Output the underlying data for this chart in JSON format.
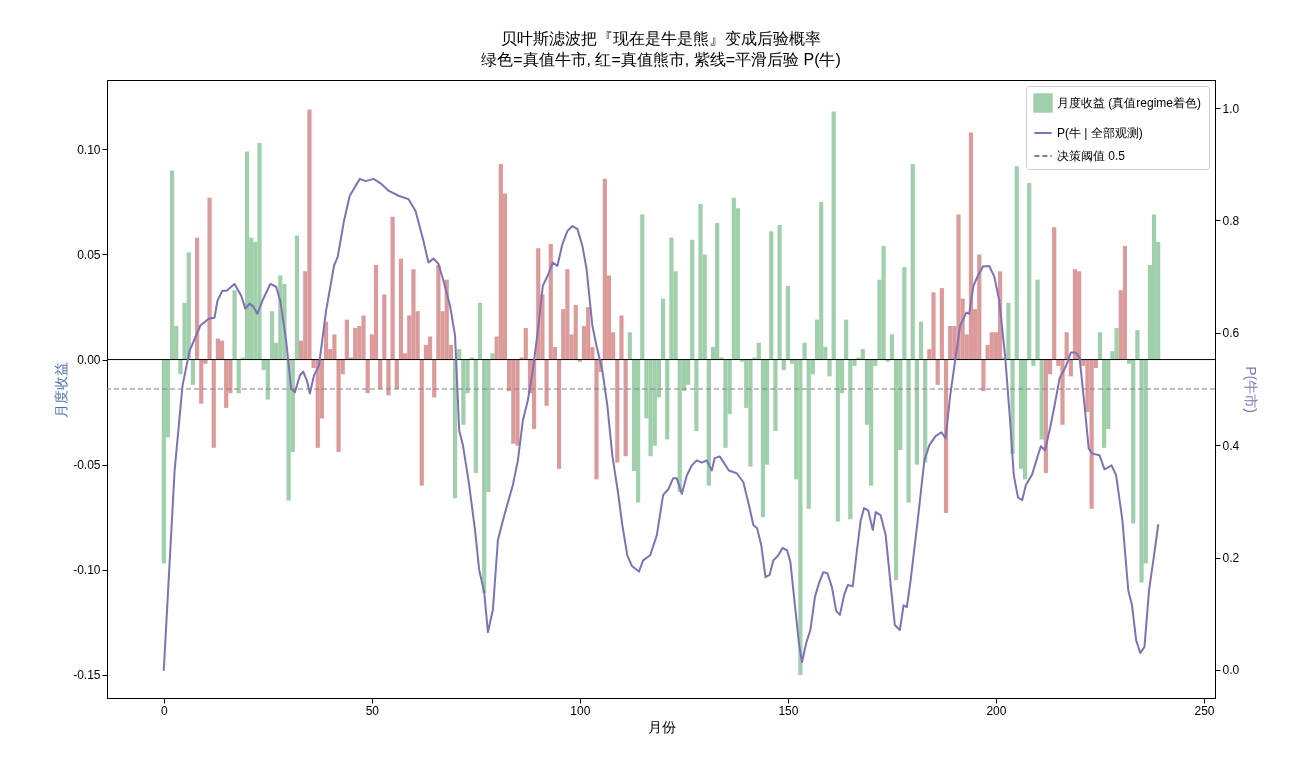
{
  "chart_data": {
    "type": "bar",
    "title": "贝叶斯滤波把『现在是牛是熊』变成后验概率",
    "subtitle": "绿色=真值牛市, 红=真值熊市, 紫线=平滑后验 P(牛)",
    "xlabel": "月份",
    "ylabel": "月度收益",
    "y2label": "P(牛市)",
    "xlim": [
      -12.45,
      251.45
    ],
    "xticks": [
      0,
      50,
      100,
      150,
      200,
      250
    ],
    "ylim": [
      -0.161,
      0.133
    ],
    "yticks": [
      {
        "value": -0.15,
        "label": "-0.15"
      },
      {
        "value": -0.1,
        "label": "-0.10"
      },
      {
        "value": -0.05,
        "label": "-0.05"
      },
      {
        "value": 0,
        "label": "0.00"
      },
      {
        "value": 0.05,
        "label": "0.05"
      },
      {
        "value": 0.1,
        "label": "0.10"
      }
    ],
    "y2lim": [
      -0.05,
      1.05
    ],
    "y2ticks": [
      {
        "value": 0,
        "label": "0.0"
      },
      {
        "value": 0.2,
        "label": "0.2"
      },
      {
        "value": 0.4,
        "label": "0.4"
      },
      {
        "value": 0.6,
        "label": "0.6"
      },
      {
        "value": 0.8,
        "label": "0.8"
      },
      {
        "value": 1,
        "label": "1.0"
      }
    ],
    "legend": "top right",
    "ref_lines": [
      {
        "axis": "y",
        "value": 0,
        "color": "#000000",
        "line_style": "solid"
      },
      {
        "axis": "y2",
        "value": 0.5,
        "label": "决策阈值 0.5",
        "color": "#808080",
        "line_style": "dashed"
      }
    ],
    "series": [
      {
        "name": "月度收益 (真值regime着色)",
        "color": "#a0cfab",
        "x": [
          0,
          1,
          2,
          3,
          4,
          5,
          6,
          7,
          8,
          9,
          10,
          11,
          12,
          13,
          14,
          15,
          16,
          17,
          18,
          19,
          20,
          21,
          22,
          23,
          24,
          25,
          26,
          27,
          28,
          29,
          30,
          31,
          32,
          33,
          34,
          35,
          36,
          37,
          38,
          39,
          40,
          41,
          42,
          43,
          44,
          45,
          46,
          47,
          48,
          49,
          50,
          51,
          52,
          53,
          54,
          55,
          56,
          57,
          58,
          59,
          60,
          61,
          62,
          63,
          64,
          65,
          66,
          67,
          68,
          69,
          70,
          71,
          72,
          73,
          74,
          75,
          76,
          77,
          78,
          79,
          80,
          81,
          82,
          83,
          84,
          85,
          86,
          87,
          88,
          89,
          90,
          91,
          92,
          93,
          94,
          95,
          96,
          97,
          98,
          99,
          100,
          101,
          102,
          103,
          104,
          105,
          106,
          107,
          108,
          109,
          110,
          111,
          112,
          113,
          114,
          115,
          116,
          117,
          118,
          119,
          120,
          121,
          122,
          123,
          124,
          125,
          126,
          127,
          128,
          129,
          130,
          131,
          132,
          133,
          134,
          135,
          136,
          137,
          138,
          139,
          140,
          141,
          142,
          143,
          144,
          145,
          146,
          147,
          148,
          149,
          150,
          151,
          152,
          153,
          154,
          155,
          156,
          157,
          158,
          159,
          160,
          161,
          162,
          163,
          164,
          165,
          166,
          167,
          168,
          169,
          170,
          171,
          172,
          173,
          174,
          175,
          176,
          177,
          178,
          179,
          180,
          181,
          182,
          183,
          184,
          185,
          186,
          187,
          188,
          189,
          190,
          191,
          192,
          193,
          194,
          195,
          196,
          197,
          198,
          199,
          200,
          201,
          202,
          203,
          204,
          205,
          206,
          207,
          208,
          209,
          210,
          211,
          212,
          213,
          214,
          215,
          216,
          217,
          218,
          219,
          220,
          221,
          222,
          223,
          224,
          225,
          226,
          227,
          228,
          229,
          230,
          231,
          232,
          233,
          234,
          235,
          236,
          237,
          238,
          239
        ],
        "values": [
          -0.097,
          -0.037,
          0.09,
          0.016,
          -0.007,
          0.027,
          0.051,
          -0.012,
          0.058,
          -0.021,
          -0.002,
          0.077,
          -0.042,
          0.01,
          0.009,
          -0.023,
          -0.016,
          0.033,
          -0.016,
          0.001,
          0.099,
          0.058,
          0.056,
          0.103,
          -0.005,
          -0.019,
          0.023,
          0.008,
          0.04,
          0.036,
          -0.067,
          -0.044,
          0.059,
          0.009,
          0.042,
          0.119,
          -0.004,
          -0.042,
          -0.028,
          0.018,
          0.005,
          0.012,
          -0.044,
          -0.007,
          0.019,
          0.001,
          0.015,
          0.016,
          0.021,
          -0.016,
          0.012,
          0.045,
          -0.014,
          0.031,
          -0.017,
          0.068,
          -0.014,
          0.048,
          0.003,
          0.021,
          0.043,
          0.023,
          -0.06,
          0.007,
          0.011,
          -0.018,
          0.045,
          0.023,
          0.038,
          0.007,
          -0.066,
          0.005,
          -0.031,
          -0.016,
          0.001,
          -0.054,
          0.027,
          -0.111,
          -0.063,
          0.003,
          0.011,
          0.093,
          0.079,
          -0.015,
          -0.04,
          -0.041,
          0.001,
          0.015,
          -0.016,
          -0.033,
          0.053,
          0.031,
          -0.022,
          0.055,
          0.006,
          -0.052,
          0.024,
          0.043,
          0.012,
          0.026,
          -0.001,
          0.016,
          0.025,
          0.006,
          -0.057,
          -0.006,
          0.086,
          0.04,
          0.013,
          -0.049,
          0.021,
          -0.046,
          0.013,
          -0.053,
          -0.068,
          0.069,
          -0.028,
          -0.046,
          -0.041,
          -0.018,
          0.029,
          -0.038,
          0.058,
          0.042,
          -0.063,
          -0.015,
          -0.012,
          0.057,
          -0.034,
          0.074,
          0.05,
          -0.06,
          0.006,
          0.065,
          0.001,
          -0.042,
          -0.026,
          0.077,
          0.072,
          -0.001,
          -0.023,
          -0.051,
          0.001,
          0.008,
          -0.075,
          -0.05,
          0.061,
          -0.034,
          0.064,
          -0.005,
          0.035,
          -0.002,
          -0.057,
          -0.15,
          0.008,
          -0.071,
          -0.007,
          0.019,
          0.075,
          0.006,
          -0.008,
          0.118,
          -0.077,
          -0.016,
          0.019,
          -0.076,
          -0.003,
          0.001,
          0.005,
          -0.031,
          -0.06,
          -0.003,
          0.038,
          0.054,
          -0.001,
          0.012,
          -0.105,
          -0.043,
          0.044,
          -0.068,
          0.093,
          -0.05,
          0.018,
          -0.049,
          0.005,
          0.032,
          -0.012,
          0.034,
          -0.073,
          0.016,
          0.016,
          0.069,
          0.029,
          0.012,
          0.108,
          0.024,
          0.05,
          -0.015,
          0.007,
          0.013,
          0.013,
          0.042,
          0.001,
          0.027,
          -0.045,
          0.092,
          -0.052,
          -0.057,
          0.084,
          -0.003,
          0.038,
          -0.038,
          -0.054,
          -0.007,
          0.063,
          -0.003,
          -0.031,
          0.013,
          -0.008,
          0.043,
          0.042,
          -0.003,
          -0.025,
          -0.071,
          -0.004,
          0.013,
          -0.042,
          -0.033,
          0.004,
          0.015,
          0.033,
          0.054,
          -0.002,
          -0.078,
          0.014,
          -0.106,
          -0.097,
          0.045,
          0.069,
          0.056
        ],
        "colors": [
          "#a0cfab",
          "#a0cfab",
          "#a0cfab",
          "#a0cfab",
          "#a0cfab",
          "#a0cfab",
          "#a0cfab",
          "#a0cfab",
          "#dc9b9b",
          "#dc9b9b",
          "#dc9b9b",
          "#dc9b9b",
          "#dc9b9b",
          "#dc9b9b",
          "#dc9b9b",
          "#dc9b9b",
          "#dc9b9b",
          "#a0cfab",
          "#a0cfab",
          "#a0cfab",
          "#a0cfab",
          "#a0cfab",
          "#a0cfab",
          "#a0cfab",
          "#a0cfab",
          "#a0cfab",
          "#a0cfab",
          "#a0cfab",
          "#a0cfab",
          "#a0cfab",
          "#a0cfab",
          "#a0cfab",
          "#a0cfab",
          "#dc9b9b",
          "#dc9b9b",
          "#dc9b9b",
          "#dc9b9b",
          "#dc9b9b",
          "#dc9b9b",
          "#dc9b9b",
          "#dc9b9b",
          "#dc9b9b",
          "#dc9b9b",
          "#dc9b9b",
          "#dc9b9b",
          "#dc9b9b",
          "#dc9b9b",
          "#dc9b9b",
          "#dc9b9b",
          "#dc9b9b",
          "#dc9b9b",
          "#dc9b9b",
          "#dc9b9b",
          "#dc9b9b",
          "#dc9b9b",
          "#dc9b9b",
          "#dc9b9b",
          "#dc9b9b",
          "#dc9b9b",
          "#dc9b9b",
          "#dc9b9b",
          "#dc9b9b",
          "#dc9b9b",
          "#dc9b9b",
          "#dc9b9b",
          "#dc9b9b",
          "#dc9b9b",
          "#dc9b9b",
          "#dc9b9b",
          "#dc9b9b",
          "#a0cfab",
          "#a0cfab",
          "#a0cfab",
          "#a0cfab",
          "#a0cfab",
          "#a0cfab",
          "#a0cfab",
          "#a0cfab",
          "#a0cfab",
          "#a0cfab",
          "#dc9b9b",
          "#dc9b9b",
          "#dc9b9b",
          "#dc9b9b",
          "#dc9b9b",
          "#dc9b9b",
          "#dc9b9b",
          "#dc9b9b",
          "#dc9b9b",
          "#dc9b9b",
          "#dc9b9b",
          "#dc9b9b",
          "#dc9b9b",
          "#dc9b9b",
          "#dc9b9b",
          "#dc9b9b",
          "#dc9b9b",
          "#dc9b9b",
          "#dc9b9b",
          "#dc9b9b",
          "#dc9b9b",
          "#dc9b9b",
          "#dc9b9b",
          "#dc9b9b",
          "#dc9b9b",
          "#dc9b9b",
          "#dc9b9b",
          "#dc9b9b",
          "#dc9b9b",
          "#dc9b9b",
          "#dc9b9b",
          "#dc9b9b",
          "#a0cfab",
          "#a0cfab",
          "#a0cfab",
          "#a0cfab",
          "#a0cfab",
          "#a0cfab",
          "#a0cfab",
          "#a0cfab",
          "#a0cfab",
          "#a0cfab",
          "#a0cfab",
          "#a0cfab",
          "#a0cfab",
          "#a0cfab",
          "#a0cfab",
          "#a0cfab",
          "#a0cfab",
          "#a0cfab",
          "#a0cfab",
          "#a0cfab",
          "#a0cfab",
          "#a0cfab",
          "#a0cfab",
          "#a0cfab",
          "#a0cfab",
          "#a0cfab",
          "#a0cfab",
          "#a0cfab",
          "#a0cfab",
          "#a0cfab",
          "#a0cfab",
          "#a0cfab",
          "#a0cfab",
          "#a0cfab",
          "#a0cfab",
          "#a0cfab",
          "#a0cfab",
          "#a0cfab",
          "#a0cfab",
          "#a0cfab",
          "#a0cfab",
          "#a0cfab",
          "#a0cfab",
          "#a0cfab",
          "#a0cfab",
          "#a0cfab",
          "#a0cfab",
          "#a0cfab",
          "#a0cfab",
          "#a0cfab",
          "#a0cfab",
          "#a0cfab",
          "#a0cfab",
          "#a0cfab",
          "#a0cfab",
          "#a0cfab",
          "#a0cfab",
          "#a0cfab",
          "#a0cfab",
          "#a0cfab",
          "#a0cfab",
          "#a0cfab",
          "#a0cfab",
          "#a0cfab",
          "#a0cfab",
          "#a0cfab",
          "#a0cfab",
          "#a0cfab",
          "#a0cfab",
          "#a0cfab",
          "#a0cfab",
          "#a0cfab",
          "#dc9b9b",
          "#dc9b9b",
          "#dc9b9b",
          "#dc9b9b",
          "#dc9b9b",
          "#dc9b9b",
          "#dc9b9b",
          "#dc9b9b",
          "#dc9b9b",
          "#dc9b9b",
          "#dc9b9b",
          "#dc9b9b",
          "#dc9b9b",
          "#dc9b9b",
          "#dc9b9b",
          "#dc9b9b",
          "#dc9b9b",
          "#dc9b9b",
          "#a0cfab",
          "#a0cfab",
          "#a0cfab",
          "#a0cfab",
          "#a0cfab",
          "#a0cfab",
          "#a0cfab",
          "#a0cfab",
          "#a0cfab",
          "#a0cfab",
          "#dc9b9b",
          "#dc9b9b",
          "#dc9b9b",
          "#dc9b9b",
          "#dc9b9b",
          "#dc9b9b",
          "#dc9b9b",
          "#dc9b9b",
          "#dc9b9b",
          "#dc9b9b",
          "#dc9b9b",
          "#dc9b9b",
          "#dc9b9b",
          "#a0cfab",
          "#a0cfab",
          "#a0cfab",
          "#a0cfab",
          "#a0cfab",
          "#dc9b9b",
          "#dc9b9b",
          "#a0cfab",
          "#a0cfab",
          "#a0cfab",
          "#a0cfab",
          "#a0cfab",
          "#a0cfab",
          "#a0cfab",
          "#a0cfab"
        ]
      },
      {
        "name": "P(牛 | 全部观测)",
        "type": "line",
        "axis": "y2",
        "color": "#7f72b4",
        "line_style": "solid",
        "x": [
          0,
          2.6,
          4.5,
          6.2,
          8.8,
          10.8,
          12.2,
          12.9,
          14.1,
          15.1,
          17,
          18.6,
          19.6,
          20.6,
          21.5,
          22.5,
          23.7,
          25.6,
          27,
          28,
          29.4,
          30.6,
          31.5,
          32.7,
          33.5,
          34.4,
          35.1,
          36.1,
          37.3,
          39,
          40.9,
          41.8,
          43.3,
          44.7,
          47.1,
          48.5,
          50.4,
          52.3,
          54,
          56.4,
          58.8,
          60.5,
          62.4,
          63.6,
          64.8,
          66,
          67.2,
          68.8,
          70,
          71,
          71.9,
          73.4,
          74.8,
          75.8,
          77,
          77.9,
          79.1,
          80.3,
          81.5,
          82.7,
          83.9,
          85.1,
          86.3,
          87.5,
          88.7,
          89.9,
          91.1,
          92.3,
          93.5,
          94.6,
          95.8,
          97,
          98.2,
          99.4,
          100.6,
          101.6,
          103,
          104,
          105.4,
          106.6,
          107.8,
          109.2,
          110.2,
          111.4,
          112.5,
          114.2,
          115.2,
          116.9,
          118.5,
          120,
          121.3,
          122.4,
          123.3,
          124.5,
          125.7,
          126.9,
          128.1,
          129.3,
          130.5,
          131.7,
          132.4,
          133.6,
          134.6,
          135.8,
          137.7,
          139.3,
          140.8,
          141.7,
          142.6,
          143.6,
          144.6,
          145.6,
          146.5,
          147.7,
          148.7,
          149.8,
          150.6,
          151.8,
          152.7,
          153.4,
          154.4,
          155.4,
          156.5,
          157.5,
          158.5,
          159.5,
          160.6,
          161.6,
          162.5,
          163.5,
          164.4,
          165.6,
          166.6,
          167.5,
          168.3,
          169.3,
          170.4,
          171.1,
          172.3,
          173.5,
          174.7,
          175.7,
          176.9,
          177.8,
          178.6,
          179.5,
          181.2,
          182.8,
          184,
          185.5,
          186.9,
          187.9,
          189,
          190.2,
          191.4,
          192.9,
          193.6,
          194.6,
          195.7,
          196.9,
          198.4,
          199.6,
          200.8,
          202.2,
          203.4,
          204.3,
          205.3,
          206.3,
          207.2,
          208.7,
          210.1,
          210.8,
          211.8,
          213,
          214.1,
          215.3,
          216.8,
          218,
          219.2,
          220.1,
          221.3,
          222.3,
          223.2,
          224.9,
          226.1,
          227.8,
          228.9,
          230.4,
          231.8,
          232.7,
          233.7,
          234.7,
          235.7,
          236.8,
          238,
          239
        ],
        "values": [
          0,
          0.355,
          0.506,
          0.568,
          0.613,
          0.625,
          0.627,
          0.657,
          0.675,
          0.675,
          0.687,
          0.666,
          0.643,
          0.652,
          0.647,
          0.634,
          0.657,
          0.687,
          0.682,
          0.657,
          0.586,
          0.501,
          0.494,
          0.524,
          0.531,
          0.515,
          0.492,
          0.524,
          0.542,
          0.639,
          0.719,
          0.735,
          0.799,
          0.844,
          0.874,
          0.87,
          0.874,
          0.865,
          0.853,
          0.844,
          0.838,
          0.817,
          0.764,
          0.725,
          0.732,
          0.723,
          0.693,
          0.648,
          0.595,
          0.426,
          0.4,
          0.329,
          0.249,
          0.178,
          0.139,
          0.067,
          0.107,
          0.231,
          0.266,
          0.298,
          0.329,
          0.373,
          0.444,
          0.48,
          0.533,
          0.604,
          0.684,
          0.702,
          0.725,
          0.719,
          0.758,
          0.781,
          0.79,
          0.785,
          0.755,
          0.714,
          0.613,
          0.577,
          0.533,
          0.471,
          0.382,
          0.314,
          0.258,
          0.204,
          0.185,
          0.175,
          0.195,
          0.204,
          0.24,
          0.311,
          0.322,
          0.341,
          0.341,
          0.313,
          0.346,
          0.364,
          0.373,
          0.369,
          0.373,
          0.355,
          0.377,
          0.38,
          0.369,
          0.355,
          0.35,
          0.334,
          0.288,
          0.258,
          0.252,
          0.222,
          0.165,
          0.169,
          0.195,
          0.204,
          0.217,
          0.213,
          0.192,
          0.107,
          0.044,
          0.014,
          0.048,
          0.071,
          0.13,
          0.155,
          0.174,
          0.172,
          0.147,
          0.105,
          0.098,
          0.133,
          0.151,
          0.149,
          0.213,
          0.266,
          0.288,
          0.284,
          0.249,
          0.281,
          0.275,
          0.24,
          0.151,
          0.08,
          0.071,
          0.115,
          0.112,
          0.16,
          0.266,
          0.373,
          0.4,
          0.416,
          0.423,
          0.412,
          0.488,
          0.551,
          0.613,
          0.636,
          0.634,
          0.684,
          0.702,
          0.718,
          0.719,
          0.7,
          0.657,
          0.56,
          0.444,
          0.346,
          0.307,
          0.302,
          0.329,
          0.348,
          0.382,
          0.398,
          0.391,
          0.43,
          0.471,
          0.519,
          0.54,
          0.565,
          0.565,
          0.556,
          0.471,
          0.394,
          0.385,
          0.382,
          0.357,
          0.364,
          0.346,
          0.266,
          0.142,
          0.115,
          0.053,
          0.03,
          0.041,
          0.142,
          0.204,
          0.258
        ]
      }
    ]
  }
}
